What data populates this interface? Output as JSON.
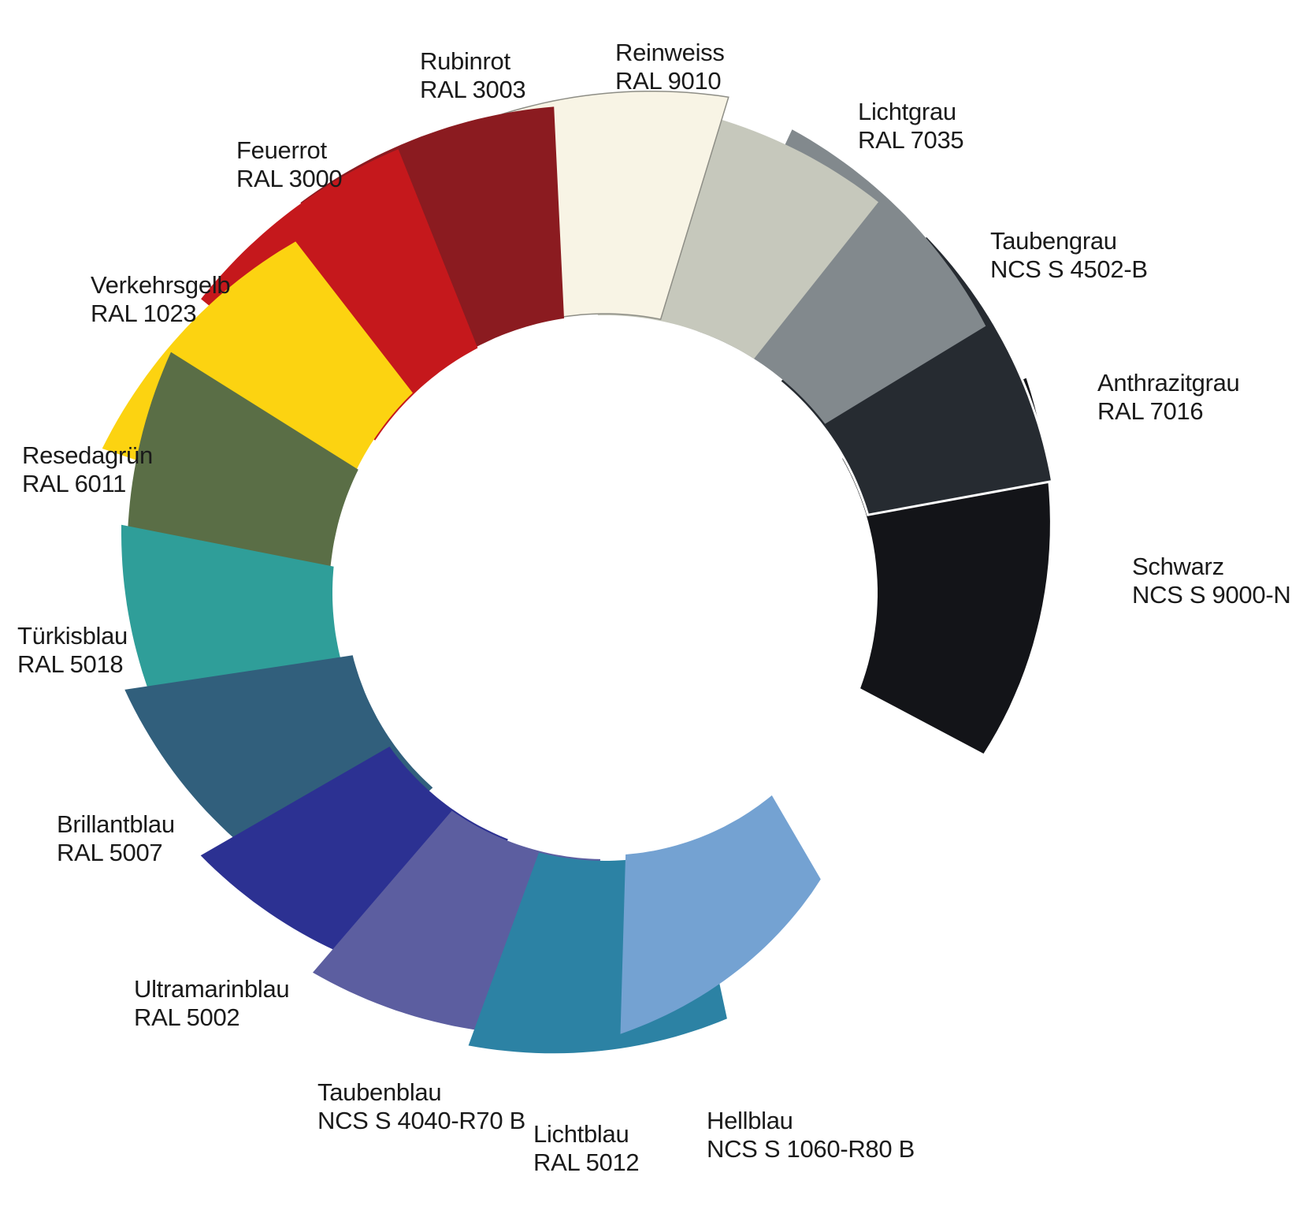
{
  "figure": {
    "kind": "color-fan-wheel",
    "background": "#ffffff",
    "label_color": "#1a1a1a",
    "segments": [
      {
        "id": "reinweiss",
        "name": "Reinweiss",
        "code": "RAL 9010",
        "color": "#F8F4E5",
        "outline": "#8E8E86"
      },
      {
        "id": "lichtgrau",
        "name": "Lichtgrau",
        "code": "RAL 7035",
        "color": "#C6C8BC"
      },
      {
        "id": "taubengrau",
        "name": "Taubengrau",
        "code": "NCS S 4502-B",
        "color": "#82898D"
      },
      {
        "id": "anthrazitgrau",
        "name": "Anthrazitgrau",
        "code": "RAL 7016",
        "color": "#262B31",
        "outline": "#FFFFFF"
      },
      {
        "id": "schwarz",
        "name": "Schwarz",
        "code": "NCS S 9000-N",
        "color": "#131418"
      },
      {
        "id": "hellblau",
        "name": "Hellblau",
        "code": "NCS S 1060-R80 B",
        "color": "#74A2D2"
      },
      {
        "id": "lichtblau",
        "name": "Lichtblau",
        "code": "RAL 5012",
        "color": "#2C82A4"
      },
      {
        "id": "taubenblau",
        "name": "Taubenblau",
        "code": "NCS S 4040-R70 B",
        "color": "#5C5EA0"
      },
      {
        "id": "ultramarinblau",
        "name": "Ultramarinblau",
        "code": "RAL 5002",
        "color": "#2C3192"
      },
      {
        "id": "brillantblau",
        "name": "Brillantblau",
        "code": "RAL 5007",
        "color": "#315F7C"
      },
      {
        "id": "tuerkisblau",
        "name": "Türkisblau",
        "code": "RAL 5018",
        "color": "#2F9E99"
      },
      {
        "id": "resedagruen",
        "name": "Resedagrün",
        "code": "RAL 6011",
        "color": "#5A6E46"
      },
      {
        "id": "verkehrsgelb",
        "name": "Verkehrsgelb",
        "code": "RAL 1023",
        "color": "#FCD311"
      },
      {
        "id": "feuerrot",
        "name": "Feuerrot",
        "code": "RAL 3000",
        "color": "#C5181C"
      },
      {
        "id": "rubinrot",
        "name": "Rubinrot",
        "code": "RAL 3003",
        "color": "#8B1B20"
      }
    ]
  }
}
